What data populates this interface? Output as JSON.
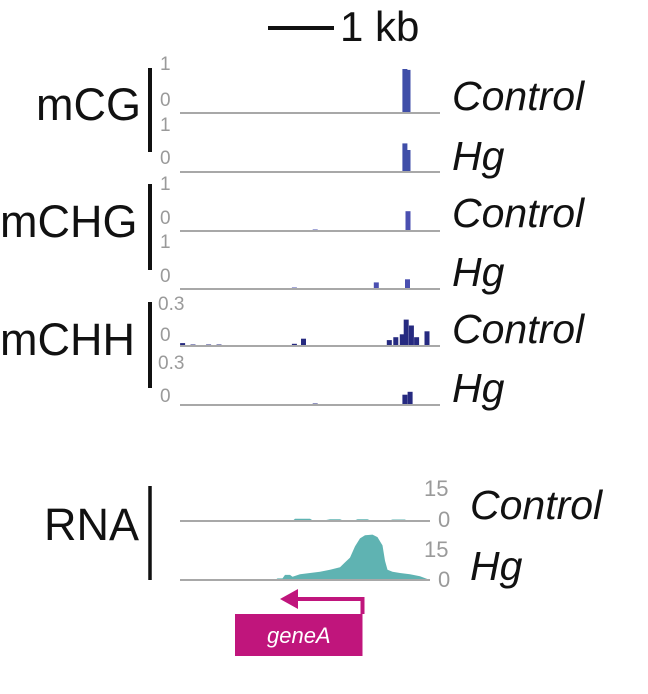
{
  "scale_bar": {
    "label": "1 kb"
  },
  "methylation": [
    {
      "group": "mCG",
      "color": "#3f4ea8",
      "tracks": [
        {
          "condition": "Control",
          "max_label": "1",
          "min_label": "0",
          "bars": [
            {
              "pos": 0.865,
              "value": 1.0
            },
            {
              "pos": 0.877,
              "value": 0.98
            }
          ]
        },
        {
          "condition": "Hg",
          "max_label": "1",
          "min_label": "0",
          "bars": [
            {
              "pos": 0.865,
              "value": 0.65
            },
            {
              "pos": 0.877,
              "value": 0.5
            }
          ]
        }
      ]
    },
    {
      "group": "mCHG",
      "color": "#4a4fb0",
      "tracks": [
        {
          "condition": "Control",
          "max_label": "1",
          "min_label": "0",
          "bars": [
            {
              "pos": 0.52,
              "value": 0.02
            },
            {
              "pos": 0.877,
              "value": 0.45
            }
          ]
        },
        {
          "condition": "Hg",
          "max_label": "1",
          "min_label": "0",
          "bars": [
            {
              "pos": 0.44,
              "value": 0.03
            },
            {
              "pos": 0.755,
              "value": 0.15
            },
            {
              "pos": 0.875,
              "value": 0.22
            }
          ]
        }
      ]
    },
    {
      "group": "mCHH",
      "color": "#262a80",
      "tracks": [
        {
          "condition": "Control",
          "max_label": "0.3",
          "min_label": "0",
          "bars": [
            {
              "pos": 0.01,
              "value": 0.02
            },
            {
              "pos": 0.05,
              "value": 0.01
            },
            {
              "pos": 0.11,
              "value": 0.01
            },
            {
              "pos": 0.15,
              "value": 0.01
            },
            {
              "pos": 0.44,
              "value": 0.015
            },
            {
              "pos": 0.475,
              "value": 0.05
            },
            {
              "pos": 0.805,
              "value": 0.04
            },
            {
              "pos": 0.83,
              "value": 0.06
            },
            {
              "pos": 0.855,
              "value": 0.08
            },
            {
              "pos": 0.87,
              "value": 0.18
            },
            {
              "pos": 0.89,
              "value": 0.14
            },
            {
              "pos": 0.91,
              "value": 0.06
            },
            {
              "pos": 0.95,
              "value": 0.1
            }
          ]
        },
        {
          "condition": "Hg",
          "max_label": "0.3",
          "min_label": "0",
          "bars": [
            {
              "pos": 0.52,
              "value": 0.005
            },
            {
              "pos": 0.865,
              "value": 0.07
            },
            {
              "pos": 0.885,
              "value": 0.09
            }
          ]
        }
      ]
    }
  ],
  "rna": {
    "group": "RNA",
    "color": "#5fb3b2",
    "tracks": [
      {
        "condition": "Control",
        "max_label": "15",
        "min_label": "0",
        "profile": [
          [
            0.0,
            0
          ],
          [
            0.45,
            0
          ],
          [
            0.46,
            1.2
          ],
          [
            0.52,
            1.2
          ],
          [
            0.53,
            0.4
          ],
          [
            0.58,
            0.4
          ],
          [
            0.6,
            0.9
          ],
          [
            0.64,
            0.9
          ],
          [
            0.65,
            0.4
          ],
          [
            0.7,
            0.4
          ],
          [
            0.71,
            0.9
          ],
          [
            0.75,
            0.9
          ],
          [
            0.76,
            0.4
          ],
          [
            0.84,
            0.4
          ],
          [
            0.85,
            0.8
          ],
          [
            0.9,
            0.8
          ],
          [
            0.91,
            0
          ],
          [
            1.0,
            0
          ]
        ]
      },
      {
        "condition": "Hg",
        "max_label": "15",
        "min_label": "0",
        "profile": [
          [
            0.0,
            0
          ],
          [
            0.38,
            0
          ],
          [
            0.39,
            0.5
          ],
          [
            0.41,
            0.5
          ],
          [
            0.42,
            1.6
          ],
          [
            0.44,
            1.6
          ],
          [
            0.45,
            1.0
          ],
          [
            0.48,
            1.8
          ],
          [
            0.52,
            2.2
          ],
          [
            0.56,
            2.6
          ],
          [
            0.6,
            3.2
          ],
          [
            0.64,
            4.0
          ],
          [
            0.66,
            5.5
          ],
          [
            0.68,
            7.0
          ],
          [
            0.7,
            10.5
          ],
          [
            0.72,
            13.0
          ],
          [
            0.74,
            14.0
          ],
          [
            0.77,
            14.2
          ],
          [
            0.79,
            13.4
          ],
          [
            0.81,
            10.8
          ],
          [
            0.82,
            6.0
          ],
          [
            0.83,
            3.2
          ],
          [
            0.85,
            2.6
          ],
          [
            0.88,
            2.2
          ],
          [
            0.92,
            1.8
          ],
          [
            0.96,
            1.2
          ],
          [
            0.98,
            0.6
          ],
          [
            1.0,
            0
          ]
        ]
      }
    ]
  },
  "gene": {
    "name": "geneA",
    "color": "#c0157c",
    "box_start": 0.22,
    "box_end": 0.73,
    "tss": 0.73,
    "arrow_tip": 0.4,
    "strand": "-"
  }
}
